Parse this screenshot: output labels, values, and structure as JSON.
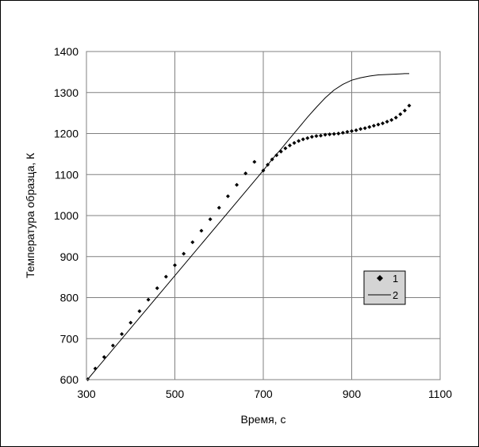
{
  "chart_data": {
    "type": "scatter",
    "xlabel": "Время, с",
    "ylabel": "Температура образца, К",
    "xlim": [
      300,
      1100
    ],
    "ylim": [
      600,
      1400
    ],
    "x_ticks": [
      300,
      500,
      700,
      900,
      1100
    ],
    "y_ticks": [
      600,
      700,
      800,
      900,
      1000,
      1100,
      1200,
      1300,
      1400
    ],
    "grid": true,
    "legend_position": "right",
    "series": [
      {
        "name": "1",
        "style": "markers",
        "color": "#000000",
        "x": [
          303,
          320,
          340,
          360,
          380,
          400,
          420,
          440,
          460,
          480,
          500,
          520,
          540,
          560,
          580,
          600,
          620,
          640,
          660,
          680,
          700,
          710,
          720,
          730,
          740,
          750,
          760,
          770,
          780,
          790,
          800,
          810,
          820,
          830,
          840,
          850,
          860,
          870,
          880,
          890,
          900,
          910,
          920,
          930,
          940,
          950,
          960,
          970,
          980,
          990,
          1000,
          1010,
          1020,
          1030
        ],
        "y": [
          601,
          627,
          655,
          683,
          711,
          739,
          767,
          795,
          823,
          851,
          879,
          907,
          935,
          963,
          991,
          1019,
          1047,
          1075,
          1103,
          1131,
          1110,
          1124,
          1137,
          1147,
          1156,
          1164,
          1171,
          1177,
          1182,
          1186,
          1189,
          1192,
          1194,
          1195,
          1197,
          1198,
          1199,
          1200,
          1202,
          1204,
          1206,
          1208,
          1211,
          1213,
          1216,
          1219,
          1222,
          1225,
          1229,
          1233,
          1239,
          1247,
          1256,
          1268
        ]
      },
      {
        "name": "2",
        "style": "line",
        "color": "#000000",
        "x": [
          303,
          700,
          720,
          740,
          760,
          780,
          800,
          820,
          840,
          860,
          880,
          900,
          920,
          940,
          960,
          980,
          1000,
          1020,
          1030
        ],
        "y": [
          601,
          1110,
          1137,
          1162,
          1188,
          1214,
          1240,
          1264,
          1287,
          1306,
          1320,
          1330,
          1336,
          1340,
          1343,
          1344,
          1345,
          1346,
          1346
        ]
      }
    ]
  }
}
